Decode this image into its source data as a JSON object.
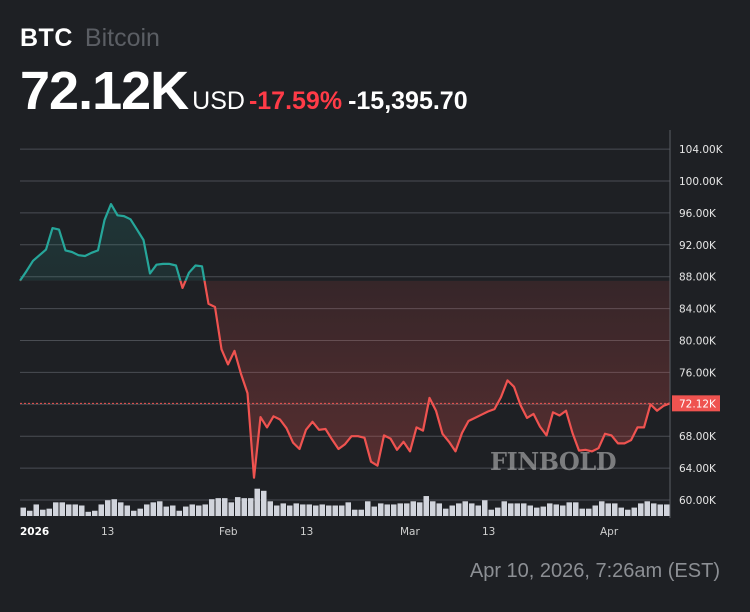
{
  "header": {
    "ticker": "BTC",
    "name": "Bitcoin",
    "price": "72.12K",
    "currency": "USD",
    "change_pct": "-17.59%",
    "change_abs": "-15,395.70"
  },
  "timestamp": "Apr 10, 2026, 7:26am (EST)",
  "watermark": "FINBOLD",
  "colors": {
    "background": "#1e2024",
    "up_line": "#26a69a",
    "down_line": "#ef5350",
    "negative_text": "#ff3b47",
    "volume_bar": "#d1d4dc",
    "price_tag": "#ef5350"
  },
  "chart_data": {
    "type": "line",
    "title": "BTC Bitcoin",
    "xlabel": "",
    "ylabel": "USD",
    "ylim": [
      58000,
      106000
    ],
    "yticks": [
      "104.00K",
      "100.00K",
      "96.00K",
      "92.00K",
      "88.00K",
      "84.00K",
      "80.00K",
      "76.00K",
      "72.00K",
      "68.00K",
      "64.00K",
      "60.00K"
    ],
    "xticks": [
      {
        "label": "2026",
        "bold": true
      },
      {
        "label": "13",
        "bold": false
      },
      {
        "label": "Feb",
        "bold": false
      },
      {
        "label": "13",
        "bold": false
      },
      {
        "label": "Mar",
        "bold": false
      },
      {
        "label": "13",
        "bold": false
      },
      {
        "label": "Apr",
        "bold": false
      }
    ],
    "baseline_price": 87500,
    "last_price_label": "72.12K",
    "last_price": 72120,
    "grid": true,
    "series": [
      {
        "name": "BTC/USD",
        "values": [
          87500,
          88700,
          90000,
          90700,
          91400,
          94100,
          93900,
          91300,
          91100,
          90700,
          90600,
          91000,
          91300,
          95100,
          97100,
          95700,
          95600,
          95200,
          93900,
          92600,
          88400,
          89500,
          89600,
          89600,
          89400,
          86600,
          88500,
          89400,
          89300,
          84600,
          84200,
          78900,
          77000,
          78700,
          75800,
          73400,
          62800,
          70400,
          69100,
          70500,
          70100,
          69000,
          67200,
          66400,
          68800,
          69800,
          68800,
          68900,
          67600,
          66400,
          67000,
          68000,
          68000,
          67800,
          64800,
          64300,
          68100,
          67700,
          66300,
          67300,
          66100,
          69100,
          68700,
          72800,
          71200,
          68300,
          67300,
          66100,
          68400,
          69900,
          70300,
          70700,
          71100,
          71400,
          72900,
          75000,
          74200,
          71900,
          70300,
          70800,
          69200,
          68100,
          71000,
          70600,
          71200,
          68400,
          66200,
          66300,
          66100,
          66500,
          68300,
          68100,
          67100,
          67100,
          67500,
          69100,
          69100,
          72000,
          71200,
          71800,
          72120
        ]
      }
    ],
    "volume": [
      8,
      5,
      11,
      6,
      7,
      13,
      13,
      11,
      11,
      10,
      4,
      5,
      11,
      15,
      16,
      13,
      10,
      5,
      7,
      11,
      13,
      14,
      9,
      10,
      5,
      9,
      11,
      10,
      11,
      16,
      17,
      17,
      13,
      18,
      17,
      17,
      26,
      24,
      14,
      10,
      12,
      10,
      12,
      11,
      11,
      10,
      11,
      10,
      10,
      10,
      13,
      6,
      6,
      14,
      9,
      12,
      11,
      11,
      12,
      12,
      14,
      13,
      19,
      14,
      12,
      7,
      10,
      12,
      14,
      12,
      10,
      15,
      6,
      8,
      14,
      12,
      12,
      12,
      10,
      8,
      9,
      12,
      11,
      10,
      13,
      13,
      7,
      7,
      10,
      14,
      12,
      12,
      8,
      6,
      8,
      12,
      14,
      12,
      11,
      11
    ]
  }
}
